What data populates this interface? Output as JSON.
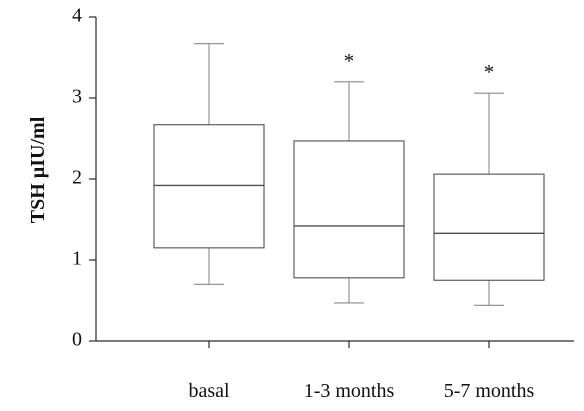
{
  "chart_data": {
    "type": "box",
    "title": "",
    "xlabel": "",
    "ylabel": "TSH µIU/ml",
    "ylim": [
      0,
      4
    ],
    "yticks": [
      0,
      1,
      2,
      3,
      4
    ],
    "grid": false,
    "categories": [
      "basal",
      "1-3 months",
      "5-7 months"
    ],
    "boxes": [
      {
        "category": "basal",
        "whisker_low": 0.7,
        "q1": 1.15,
        "median": 1.92,
        "q3": 2.67,
        "whisker_high": 3.67,
        "annotation": ""
      },
      {
        "category": "1-3 months",
        "whisker_low": 0.47,
        "q1": 0.78,
        "median": 1.42,
        "q3": 2.47,
        "whisker_high": 3.2,
        "annotation": "*"
      },
      {
        "category": "5-7 months",
        "whisker_low": 0.44,
        "q1": 0.75,
        "median": 1.33,
        "q3": 2.06,
        "whisker_high": 3.06,
        "annotation": "*"
      }
    ]
  }
}
